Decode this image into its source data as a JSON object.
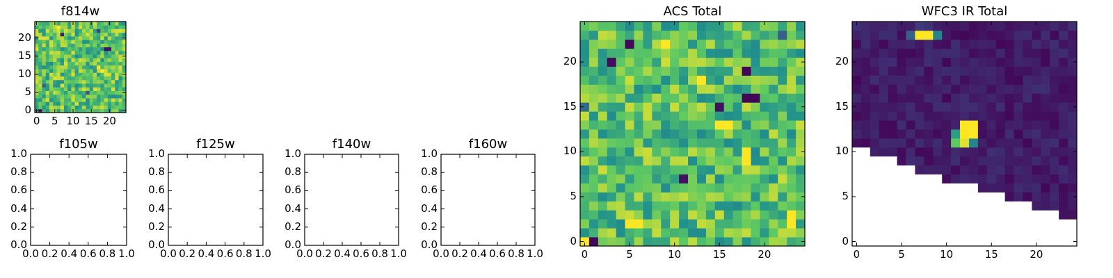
{
  "chart_data": [
    {
      "type": "heatmap",
      "title": "f814w",
      "xlabel": "",
      "ylabel": "",
      "xlim": [
        -0.5,
        24.5
      ],
      "ylim": [
        -0.5,
        24.5
      ],
      "xticks": [
        0,
        5,
        10,
        15,
        20
      ],
      "xtick_labels": [
        "0",
        "5",
        "10",
        "15",
        "20"
      ],
      "yticks": [
        0,
        5,
        10,
        15,
        20
      ],
      "ytick_labels": [
        "0",
        "5",
        "10",
        "15",
        "20"
      ],
      "colormap": "viridis",
      "grid": false,
      "note_values": "0-1 normalized colormap level",
      "values": []
    },
    {
      "type": "heatmap",
      "title": "f105w",
      "empty": true,
      "xlim": [
        0,
        1
      ],
      "ylim": [
        0,
        1
      ],
      "xticks": [
        0,
        0.2,
        0.4,
        0.6,
        0.8,
        1.0
      ],
      "xtick_labels": [
        "0.0",
        "0.2",
        "0.4",
        "0.6",
        "0.8",
        "1.0"
      ],
      "yticks": [
        0,
        0.2,
        0.4,
        0.6,
        0.8,
        1.0
      ],
      "ytick_labels": [
        "0.0",
        "0.2",
        "0.4",
        "0.6",
        "0.8",
        "1.0"
      ]
    },
    {
      "type": "heatmap",
      "title": "f125w",
      "empty": true,
      "xlim": [
        0,
        1
      ],
      "ylim": [
        0,
        1
      ],
      "xticks": [
        0,
        0.2,
        0.4,
        0.6,
        0.8,
        1.0
      ],
      "xtick_labels": [
        "0.0",
        "0.2",
        "0.4",
        "0.6",
        "0.8",
        "1.0"
      ],
      "yticks": [
        0,
        0.2,
        0.4,
        0.6,
        0.8,
        1.0
      ],
      "ytick_labels": [
        "0.0",
        "0.2",
        "0.4",
        "0.6",
        "0.8",
        "1.0"
      ]
    },
    {
      "type": "heatmap",
      "title": "f140w",
      "empty": true,
      "xlim": [
        0,
        1
      ],
      "ylim": [
        0,
        1
      ],
      "xticks": [
        0,
        0.2,
        0.4,
        0.6,
        0.8,
        1.0
      ],
      "xtick_labels": [
        "0.0",
        "0.2",
        "0.4",
        "0.6",
        "0.8",
        "1.0"
      ],
      "yticks": [
        0,
        0.2,
        0.4,
        0.6,
        0.8,
        1.0
      ],
      "ytick_labels": [
        "0.0",
        "0.2",
        "0.4",
        "0.6",
        "0.8",
        "1.0"
      ]
    },
    {
      "type": "heatmap",
      "title": "f160w",
      "empty": true,
      "xlim": [
        0,
        1
      ],
      "ylim": [
        0,
        1
      ],
      "xticks": [
        0,
        0.2,
        0.4,
        0.6,
        0.8,
        1.0
      ],
      "xtick_labels": [
        "0.0",
        "0.2",
        "0.4",
        "0.6",
        "0.8",
        "1.0"
      ],
      "yticks": [
        0,
        0.2,
        0.4,
        0.6,
        0.8,
        1.0
      ],
      "ytick_labels": [
        "0.0",
        "0.2",
        "0.4",
        "0.6",
        "0.8",
        "1.0"
      ]
    },
    {
      "type": "heatmap",
      "title": "ACS Total",
      "xlim": [
        -0.5,
        24.5
      ],
      "ylim": [
        -0.5,
        24.5
      ],
      "xticks": [
        0,
        5,
        10,
        15,
        20
      ],
      "xtick_labels": [
        "0",
        "5",
        "10",
        "15",
        "20"
      ],
      "yticks": [
        0,
        5,
        10,
        15,
        20
      ],
      "ytick_labels": [
        "0",
        "5",
        "10",
        "15",
        "20"
      ],
      "colormap": "viridis",
      "values": []
    },
    {
      "type": "heatmap",
      "title": "WFC3 IR Total",
      "xlim": [
        -0.5,
        24.5
      ],
      "ylim": [
        -0.5,
        24.5
      ],
      "xticks": [
        0,
        5,
        10,
        15,
        20
      ],
      "xtick_labels": [
        "0",
        "5",
        "10",
        "15",
        "20"
      ],
      "yticks": [
        0,
        5,
        10,
        15,
        20
      ],
      "ytick_labels": [
        "0",
        "5",
        "10",
        "15",
        "20"
      ],
      "colormap": "viridis",
      "values": []
    }
  ],
  "colors": {
    "viridis": [
      "#440154",
      "#3b528b",
      "#21918c",
      "#5ec962",
      "#fde725"
    ]
  }
}
